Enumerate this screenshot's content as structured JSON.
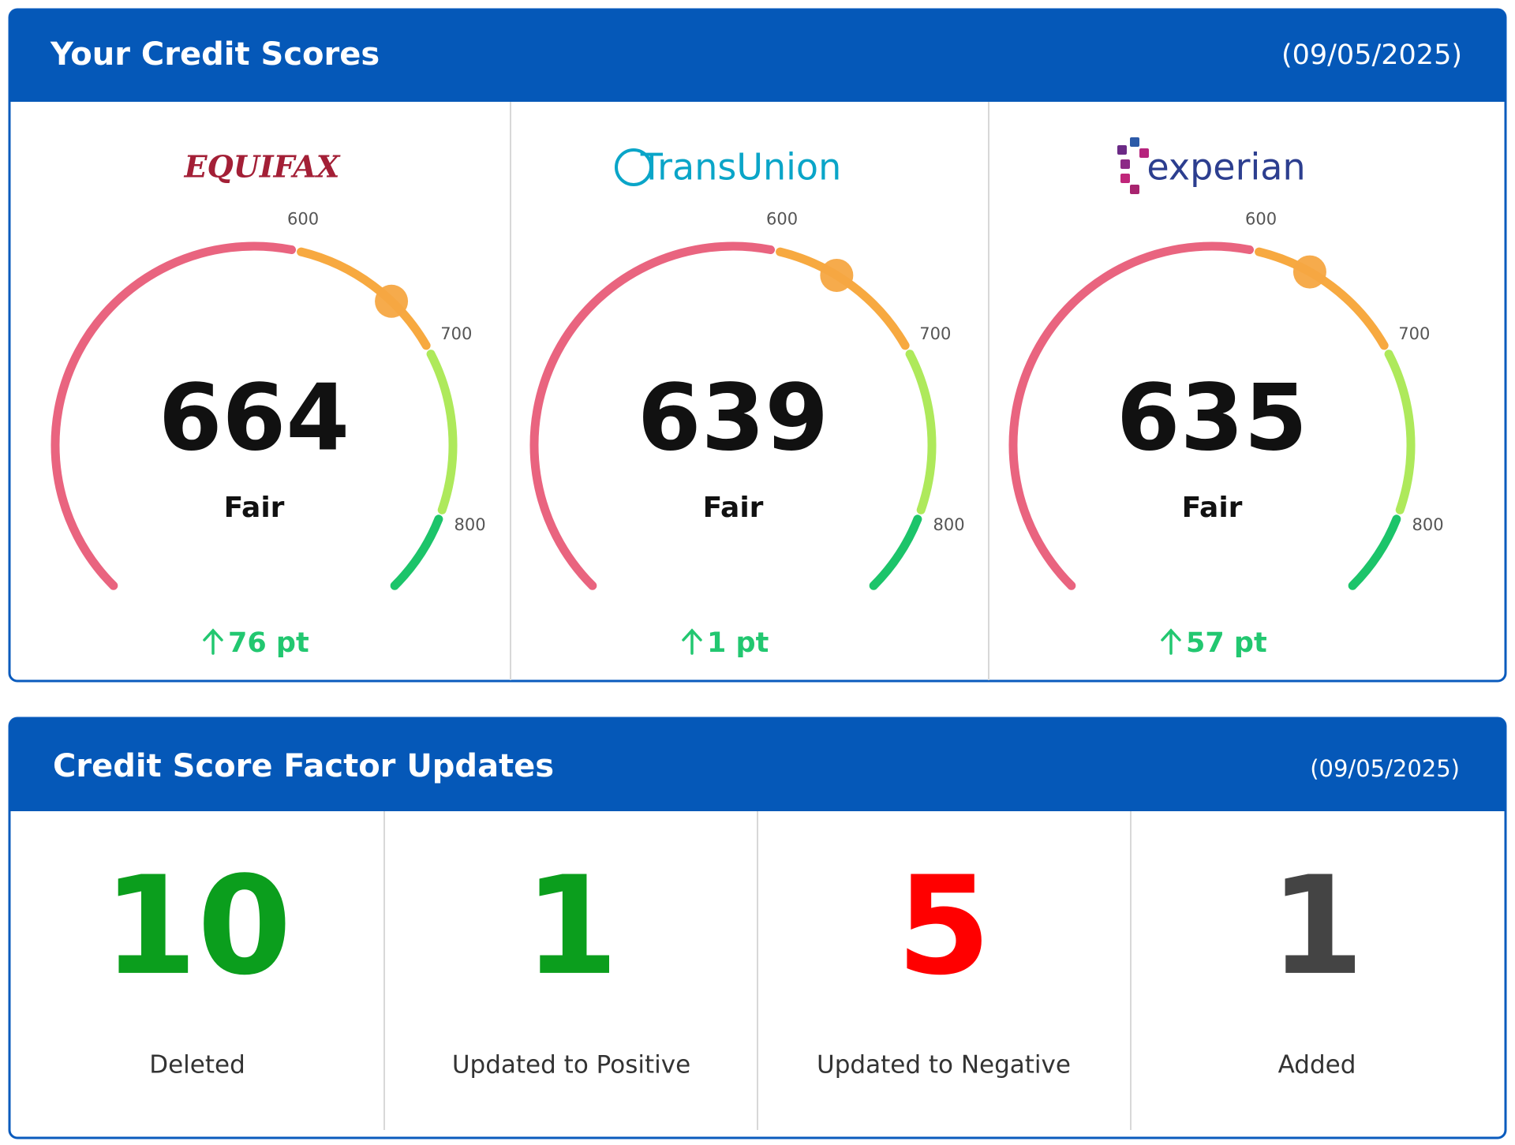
{
  "scores_panel": {
    "title": "Your Credit Scores",
    "date": "(09/05/2025)",
    "gauge": {
      "min": 300,
      "max": 850,
      "ticks": [
        600,
        700,
        800
      ],
      "segment_colors": [
        "#e9647f",
        "#f7a940",
        "#aee95b",
        "#1cc46a"
      ],
      "marker_color": "#f5a742"
    },
    "bureaus": [
      {
        "name": "EQUIFAX",
        "score": 664,
        "rating": "Fair",
        "change": "76 pt"
      },
      {
        "name": "TransUnion",
        "score": 639,
        "rating": "Fair",
        "change": "1 pt"
      },
      {
        "name": "experian",
        "score": 635,
        "rating": "Fair",
        "change": "57 pt"
      }
    ]
  },
  "factors_panel": {
    "title": "Credit Score Factor Updates",
    "date": "(09/05/2025)",
    "items": [
      {
        "count": "10",
        "label": "Deleted",
        "color": "#0b9e1d"
      },
      {
        "count": "1",
        "label": "Updated to Positive",
        "color": "#0b9e1d"
      },
      {
        "count": "5",
        "label": "Updated to Negative",
        "color": "#ff0000"
      },
      {
        "count": "1",
        "label": "Added",
        "color": "#444444"
      }
    ]
  }
}
